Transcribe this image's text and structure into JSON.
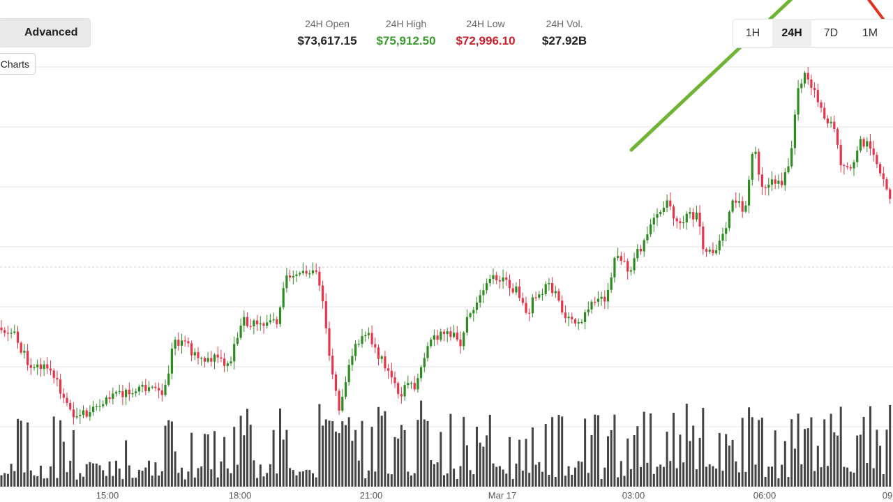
{
  "toolbar": {
    "view_tabs": {
      "advanced_label": "Advanced"
    },
    "charts_button_label": "Charts"
  },
  "stats": [
    {
      "label": "24H Open",
      "value": "$73,617.15",
      "color": "#222222"
    },
    {
      "label": "24H High",
      "value": "$75,912.50",
      "color": "#3a9a2d"
    },
    {
      "label": "24H Low",
      "value": "$72,996.10",
      "color": "#c8202b"
    },
    {
      "label": "24H Vol.",
      "value": "$27.92B",
      "color": "#222222"
    }
  ],
  "ranges": [
    "1H",
    "24H",
    "7D",
    "1M"
  ],
  "active_range": "24H",
  "colors": {
    "up": "#2e8b22",
    "down": "#e8344a",
    "volume": "#444444",
    "grid": "#e5e5e5",
    "trend_green": "#71b334",
    "trend_red": "#e0301e"
  },
  "chart_data": {
    "type": "candlestick",
    "x_labels": [
      "15:00",
      "18:00",
      "21:00",
      "Mar 17",
      "03:00",
      "06:00",
      "09"
    ],
    "legend": "none",
    "grid": "horizontal",
    "volume_panel": true,
    "trend_lines": [
      {
        "color": "green",
        "direction": "up"
      },
      {
        "color": "red",
        "direction": "down"
      }
    ]
  }
}
